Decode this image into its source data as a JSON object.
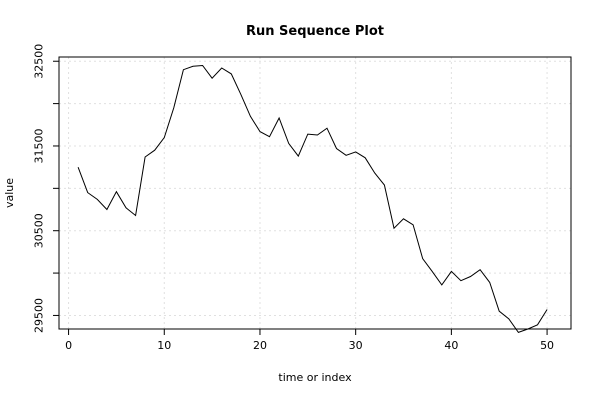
{
  "chart_data": {
    "type": "line",
    "title": "Run Sequence Plot",
    "xlabel": "time or index",
    "ylabel": "value",
    "xlim": [
      -1,
      52.5
    ],
    "ylim": [
      29340,
      32550
    ],
    "x_ticks": [
      0,
      10,
      20,
      30,
      40,
      50
    ],
    "x_tick_labels": [
      "0",
      "10",
      "20",
      "30",
      "40",
      "50"
    ],
    "y_ticks": [
      29500,
      30000,
      30500,
      31000,
      31500,
      32000,
      32500
    ],
    "y_tick_labels": [
      "29500",
      "",
      "30500",
      "",
      "31500",
      "",
      "32500"
    ],
    "grid": true,
    "series": [
      {
        "x": [
          1,
          2,
          3,
          4,
          5,
          6,
          7,
          8,
          9,
          10,
          11,
          12,
          13,
          14,
          15,
          16,
          17,
          18,
          19,
          20,
          21,
          22,
          23,
          24,
          25,
          26,
          27,
          28,
          29,
          30,
          31,
          32,
          33,
          34,
          35,
          36,
          37,
          38,
          39,
          40,
          41,
          42,
          43,
          44,
          45,
          46,
          47,
          48,
          49,
          50
        ],
        "y": [
          31250,
          30950,
          30870,
          30750,
          30960,
          30770,
          30680,
          31370,
          31450,
          31600,
          31950,
          32400,
          32440,
          32450,
          32300,
          32420,
          32350,
          32110,
          31850,
          31670,
          31610,
          31830,
          31530,
          31380,
          31640,
          31630,
          31710,
          31470,
          31390,
          31430,
          31360,
          31180,
          31040,
          30530,
          30640,
          30570,
          30170,
          30020,
          29860,
          30020,
          29910,
          29960,
          30040,
          29890,
          29550,
          29460,
          29300,
          29340,
          29390,
          29570
        ]
      }
    ]
  }
}
